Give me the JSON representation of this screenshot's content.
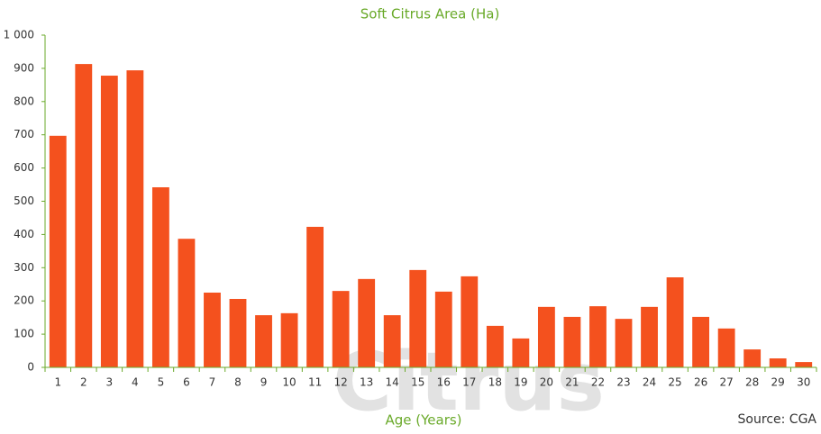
{
  "chart_data": {
    "type": "bar",
    "title": "Soft Citrus Area (Ha)",
    "x_label": "Age (Years)",
    "source": "Source: CGA",
    "watermark": "Citrus",
    "categories": [
      "1",
      "2",
      "3",
      "4",
      "5",
      "6",
      "7",
      "8",
      "9",
      "10",
      "11",
      "12",
      "13",
      "14",
      "15",
      "16",
      "17",
      "18",
      "19",
      "20",
      "21",
      "22",
      "23",
      "24",
      "25",
      "26",
      "27",
      "28",
      "29",
      "30"
    ],
    "values": [
      697,
      913,
      878,
      894,
      542,
      387,
      225,
      206,
      157,
      163,
      423,
      230,
      266,
      157,
      293,
      228,
      274,
      125,
      87,
      182,
      152,
      184,
      146,
      182,
      271,
      152,
      117,
      54,
      27,
      16
    ],
    "color": "#f4511e",
    "axis_color": "#6aaa2a",
    "ylim": [
      0,
      1000
    ],
    "yticks": [
      0,
      100,
      200,
      300,
      400,
      500,
      600,
      700,
      800,
      900,
      {
        "value": 1000,
        "label": "1 000"
      }
    ]
  }
}
